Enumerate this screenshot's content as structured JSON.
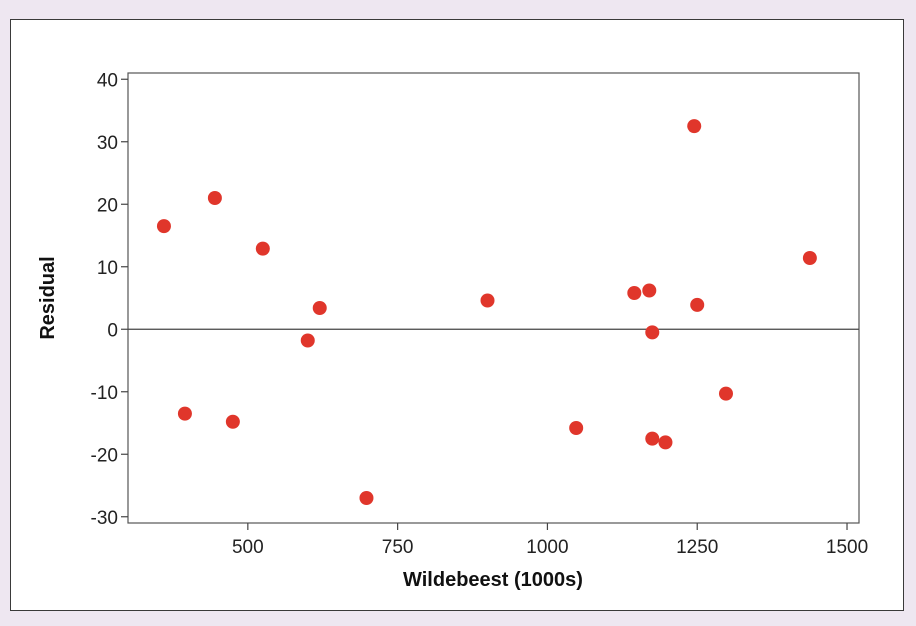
{
  "chart_data": {
    "type": "scatter",
    "title": "",
    "xlabel": "Wildebeest  (1000s)",
    "ylabel": "Residual",
    "xlim": [
      300,
      1520
    ],
    "ylim": [
      -31,
      41
    ],
    "x_ticks": [
      500,
      750,
      1000,
      1250,
      1500
    ],
    "y_ticks": [
      40,
      30,
      20,
      10,
      0,
      -10,
      -20,
      -30
    ],
    "grid": false,
    "reference_line_y": 0,
    "point_color": "#e0362b",
    "series": [
      {
        "points": [
          {
            "x": 360,
            "y": 16.5
          },
          {
            "x": 395,
            "y": -13.5
          },
          {
            "x": 445,
            "y": 21
          },
          {
            "x": 475,
            "y": -14.8
          },
          {
            "x": 525,
            "y": 12.9
          },
          {
            "x": 600,
            "y": -1.8
          },
          {
            "x": 620,
            "y": 3.4
          },
          {
            "x": 698,
            "y": -27
          },
          {
            "x": 900,
            "y": 4.6
          },
          {
            "x": 1048,
            "y": -15.8
          },
          {
            "x": 1145,
            "y": 5.8
          },
          {
            "x": 1170,
            "y": 6.2
          },
          {
            "x": 1175,
            "y": -0.5
          },
          {
            "x": 1175,
            "y": -17.5
          },
          {
            "x": 1197,
            "y": -18.1
          },
          {
            "x": 1245,
            "y": 32.5
          },
          {
            "x": 1250,
            "y": 3.9
          },
          {
            "x": 1298,
            "y": -10.3
          },
          {
            "x": 1438,
            "y": 11.4
          }
        ]
      }
    ]
  }
}
